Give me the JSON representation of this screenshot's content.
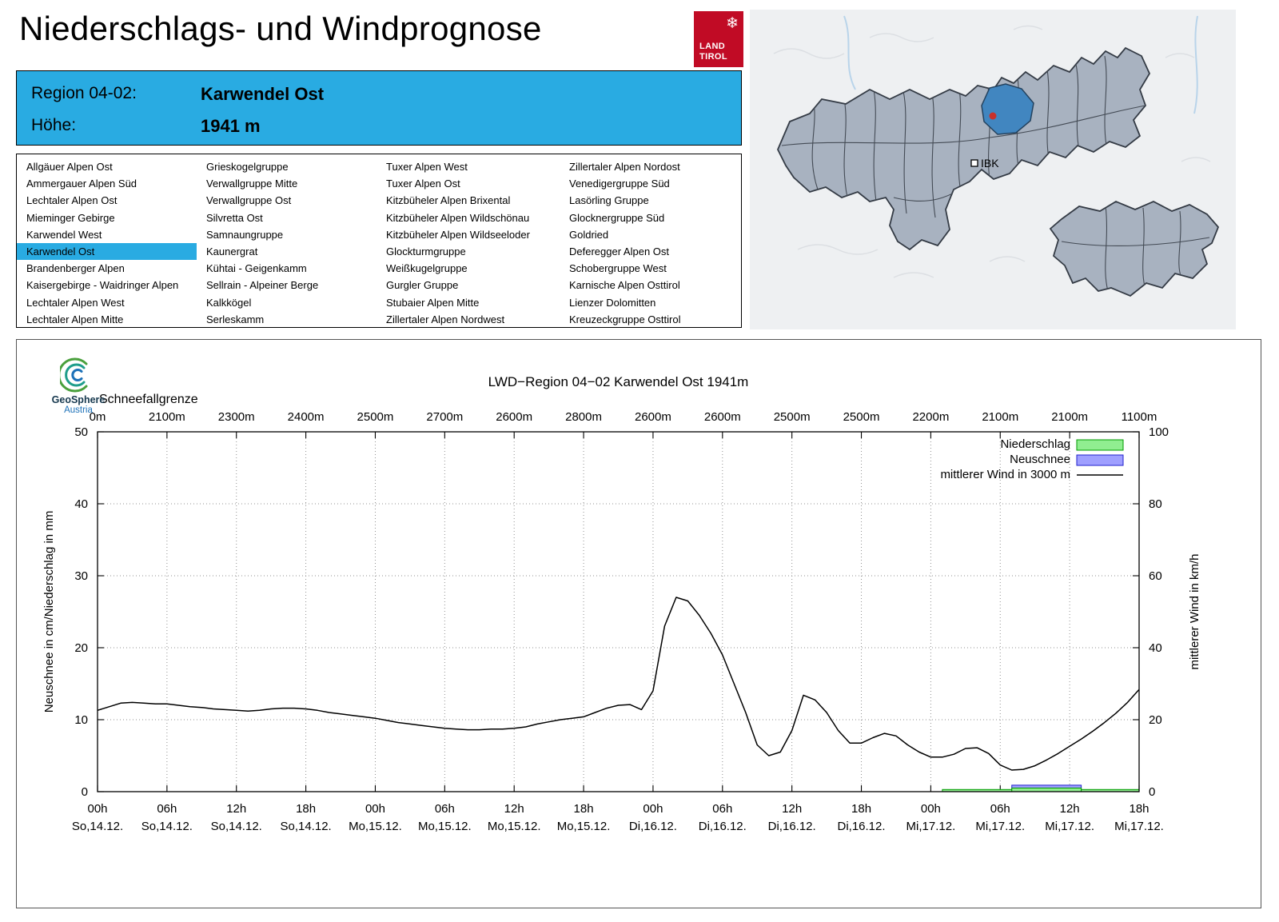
{
  "header": {
    "title": "Niederschlags- und Windprognose",
    "logo": {
      "snowflake_icon": "❄",
      "line1": "LAND",
      "line2": "TIROL",
      "color": "#c10b25"
    }
  },
  "region_info": {
    "region_label": "Region 04-02:",
    "region_value": "Karwendel Ost",
    "elevation_label": "Höhe:",
    "elevation_value": "1941 m",
    "background_color": "#29abe2"
  },
  "map": {
    "city_label": "IBK",
    "selected_region_color": "#4186c0",
    "marker_color": "#c8312b"
  },
  "region_list": {
    "selected": "Karwendel Ost",
    "columns": [
      [
        "Allgäuer Alpen Ost",
        "Ammergauer Alpen Süd",
        "Lechtaler Alpen Ost",
        "Mieminger Gebirge",
        "Karwendel West",
        "Karwendel Ost",
        "Brandenberger Alpen",
        "Kaisergebirge - Waidringer Alpen",
        "Lechtaler Alpen West",
        "Lechtaler Alpen Mitte"
      ],
      [
        "Grieskogelgruppe",
        "Verwallgruppe Mitte",
        "Verwallgruppe Ost",
        "Silvretta Ost",
        "Samnaungruppe",
        "Kaunergrat",
        "Kühtai - Geigenkamm",
        "Sellrain - Alpeiner Berge",
        "Kalkkögel",
        "Serleskamm"
      ],
      [
        "Tuxer Alpen West",
        "Tuxer Alpen Ost",
        "Kitzbüheler Alpen Brixental",
        "Kitzbüheler Alpen Wildschönau",
        "Kitzbüheler Alpen Wildseeloder",
        "Glockturmgruppe",
        "Weißkugelgruppe",
        "Gurgler Gruppe",
        "Stubaier Alpen Mitte",
        "Zillertaler Alpen Nordwest"
      ],
      [
        "Zillertaler Alpen Nordost",
        "Venedigergruppe Süd",
        "Lasörling Gruppe",
        "Glocknergruppe Süd",
        "Goldried",
        "Deferegger Alpen Ost",
        "Schobergruppe West",
        "Karnische Alpen Osttirol",
        "Lienzer Dolomitten",
        "Kreuzeckgruppe Osttirol"
      ]
    ]
  },
  "chart_branding": {
    "org": "GeoSphere",
    "org_sub": "Austria"
  },
  "chart_data": {
    "type": "line",
    "title": "LWD−Region 04−02 Karwendel Ost 1941m",
    "top_label": "Schneefallgrenze",
    "snowfall_line_values": [
      "0m",
      "2100m",
      "2300m",
      "2400m",
      "2500m",
      "2700m",
      "2600m",
      "2800m",
      "2600m",
      "2600m",
      "2500m",
      "2500m",
      "2200m",
      "2100m",
      "2100m",
      "1100m"
    ],
    "x_range_hours": [
      0,
      90
    ],
    "x_ticks": [
      {
        "hour": 0,
        "time": "00h",
        "date": "So,14.12."
      },
      {
        "hour": 6,
        "time": "06h",
        "date": "So,14.12."
      },
      {
        "hour": 12,
        "time": "12h",
        "date": "So,14.12."
      },
      {
        "hour": 18,
        "time": "18h",
        "date": "So,14.12."
      },
      {
        "hour": 24,
        "time": "00h",
        "date": "Mo,15.12."
      },
      {
        "hour": 30,
        "time": "06h",
        "date": "Mo,15.12."
      },
      {
        "hour": 36,
        "time": "12h",
        "date": "Mo,15.12."
      },
      {
        "hour": 42,
        "time": "18h",
        "date": "Mo,15.12."
      },
      {
        "hour": 48,
        "time": "00h",
        "date": "Di,16.12."
      },
      {
        "hour": 54,
        "time": "06h",
        "date": "Di,16.12."
      },
      {
        "hour": 60,
        "time": "12h",
        "date": "Di,16.12."
      },
      {
        "hour": 66,
        "time": "18h",
        "date": "Di,16.12."
      },
      {
        "hour": 72,
        "time": "00h",
        "date": "Mi,17.12."
      },
      {
        "hour": 78,
        "time": "06h",
        "date": "Mi,17.12."
      },
      {
        "hour": 84,
        "time": "12h",
        "date": "Mi,17.12."
      },
      {
        "hour": 90,
        "time": "18h",
        "date": "Mi,17.12."
      }
    ],
    "left_axis": {
      "label": "Neuschnee in cm/Niederschlag in mm",
      "range": [
        0,
        50
      ],
      "ticks": [
        0,
        10,
        20,
        30,
        40,
        50
      ]
    },
    "right_axis": {
      "label": "mittlerer Wind in km/h",
      "range": [
        0,
        100
      ],
      "ticks": [
        0,
        20,
        40,
        60,
        80,
        100
      ]
    },
    "legend": [
      {
        "label": "Niederschlag",
        "type": "box",
        "fill": "#90ee90",
        "stroke": "#009900"
      },
      {
        "label": "Neuschnee",
        "type": "box",
        "fill": "#9f9fff",
        "stroke": "#2222cc"
      },
      {
        "label": "mittlerer Wind in 3000 m",
        "type": "line",
        "stroke": "#000000"
      }
    ],
    "series": [
      {
        "name": "mittlerer Wind in 3000 m",
        "axis": "right",
        "unit": "km/h",
        "x_step_hours": 1,
        "values": [
          22.6,
          23.6,
          24.6,
          24.8,
          24.6,
          24.4,
          24.4,
          24.0,
          23.6,
          23.4,
          23.0,
          22.8,
          22.6,
          22.4,
          22.6,
          23.0,
          23.2,
          23.2,
          23.0,
          22.6,
          22.0,
          21.6,
          21.2,
          20.8,
          20.4,
          19.8,
          19.2,
          18.8,
          18.4,
          18.0,
          17.6,
          17.4,
          17.2,
          17.2,
          17.4,
          17.4,
          17.6,
          18.0,
          18.8,
          19.4,
          20.0,
          20.4,
          20.8,
          22.0,
          23.2,
          24.0,
          24.2,
          22.8,
          28.0,
          46.0,
          54.0,
          53.0,
          49.0,
          44.0,
          38.0,
          30.0,
          22.0,
          13.0,
          10.0,
          11.0,
          17.0,
          26.8,
          25.5,
          22.0,
          17.0,
          13.5,
          13.5,
          15.0,
          16.2,
          15.5,
          13.0,
          11.0,
          9.6,
          9.6,
          10.4,
          12.0,
          12.2,
          10.6,
          7.4,
          6.0,
          6.2,
          7.2,
          8.8,
          10.6,
          12.6,
          14.6,
          16.8,
          19.2,
          21.8,
          24.8,
          28.4
        ]
      }
    ],
    "bars": [
      {
        "name": "Niederschlag",
        "axis": "left",
        "unit": "mm",
        "fill": "#90ee90",
        "stroke": "#009900",
        "segments": [
          {
            "from_hour": 73,
            "to_hour": 79,
            "value": 0.3
          },
          {
            "from_hour": 79,
            "to_hour": 85,
            "value": 0.5
          },
          {
            "from_hour": 85,
            "to_hour": 90,
            "value": 0.3
          }
        ]
      },
      {
        "name": "Neuschnee",
        "axis": "left",
        "unit": "cm",
        "fill": "#9f9fff",
        "stroke": "#2222cc",
        "segments": [
          {
            "from_hour": 79,
            "to_hour": 85,
            "value": 0.9
          }
        ]
      }
    ]
  }
}
